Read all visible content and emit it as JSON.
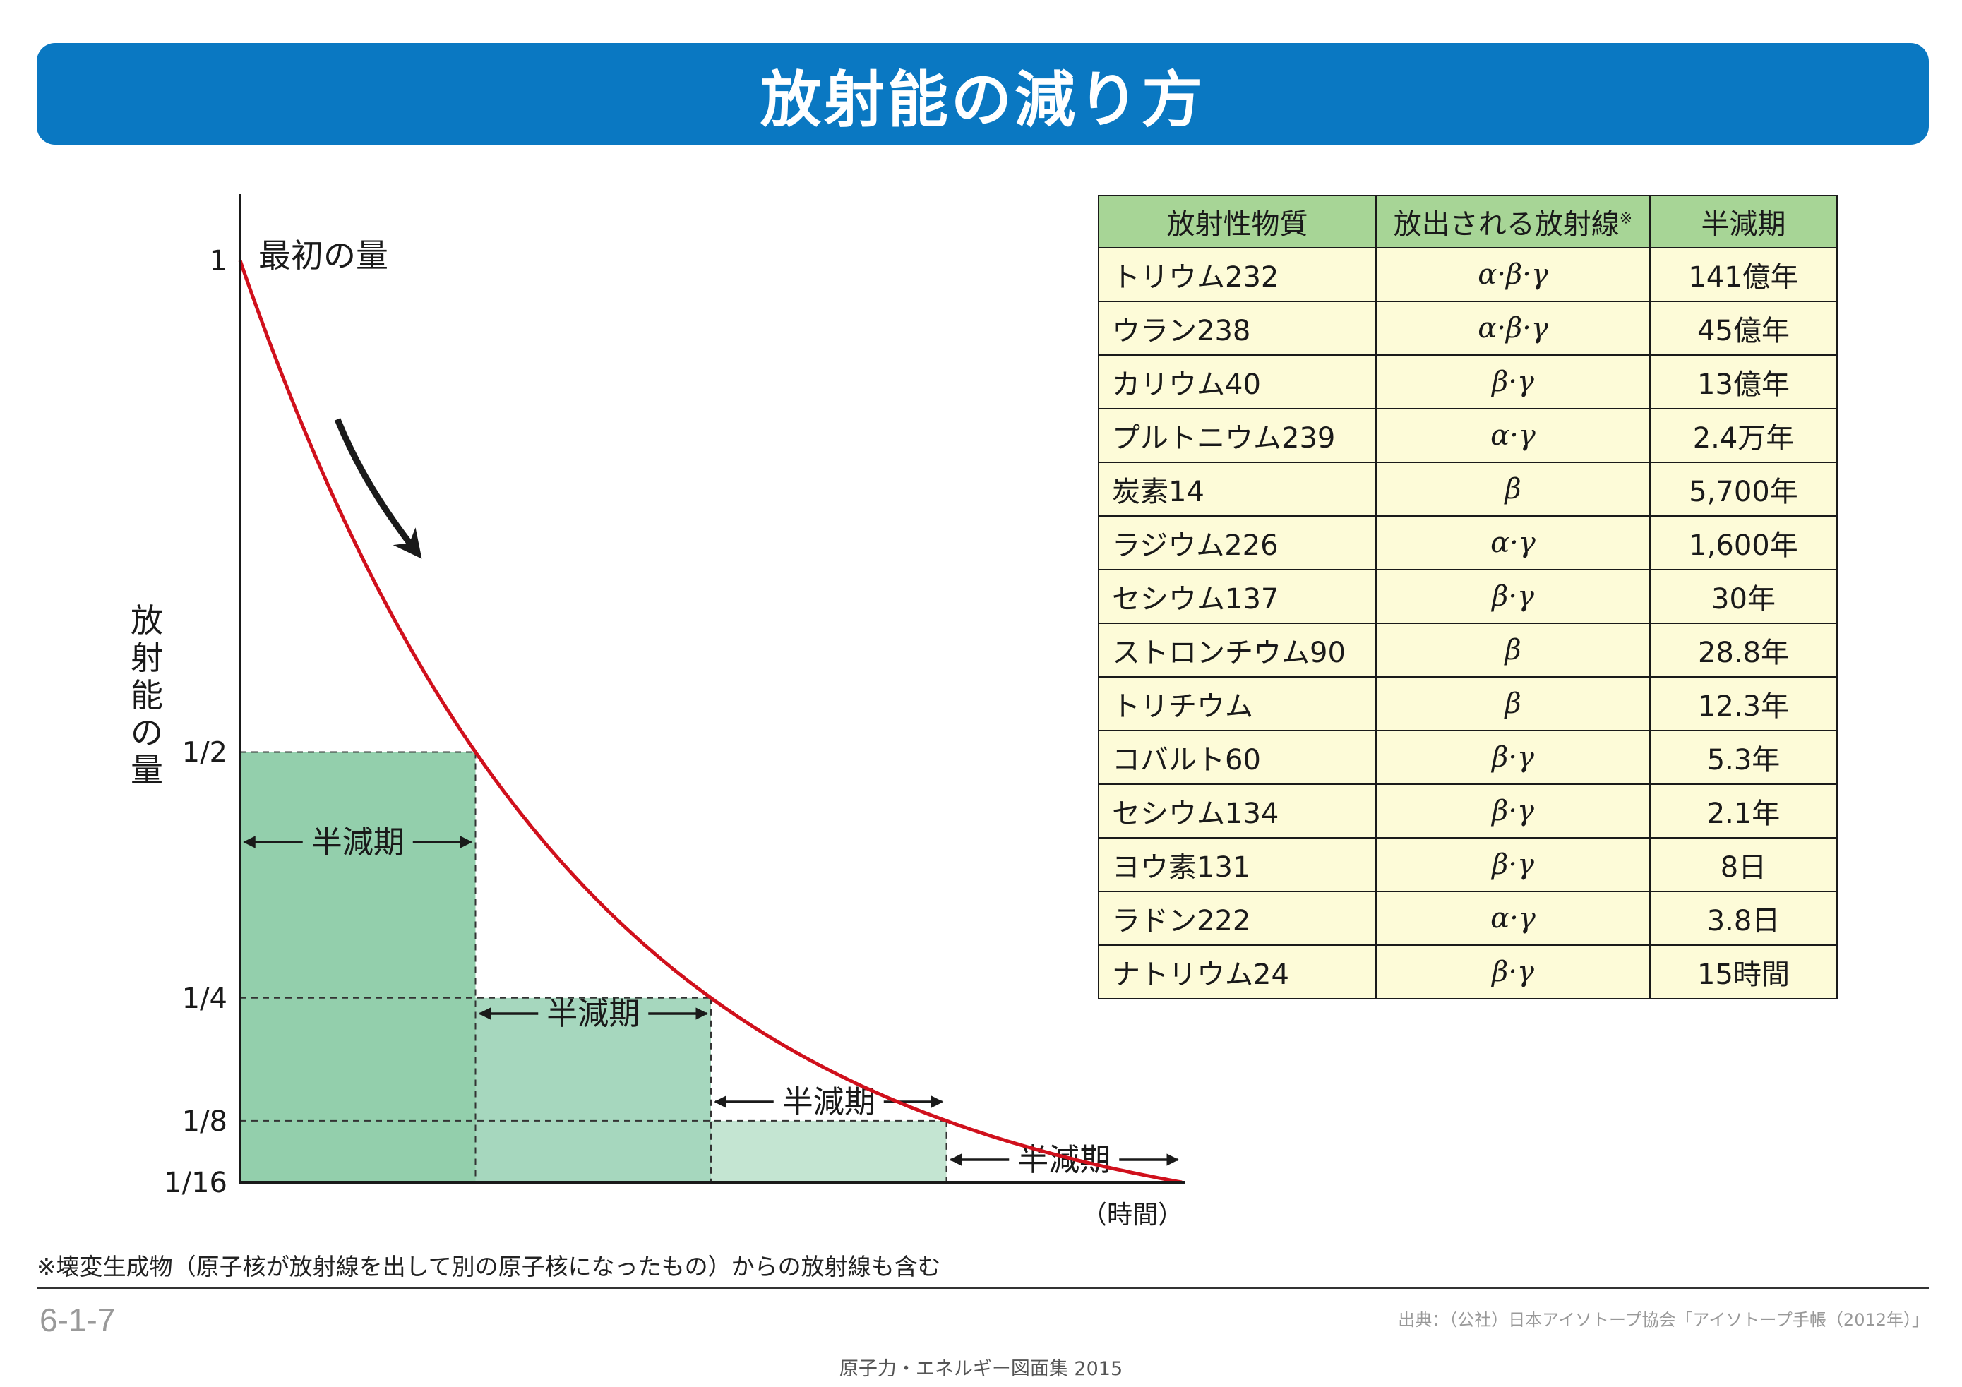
{
  "title": "放射能の減り方",
  "chart_data": {
    "type": "line",
    "ylabel": "放射能の量",
    "xlabel": "（時間）",
    "y_ticks": [
      "1",
      "1/2",
      "1/4",
      "1/8",
      "1/16"
    ],
    "y_tick_values": [
      1,
      0.5,
      0.25,
      0.125,
      0.0625
    ],
    "x": [
      0,
      1,
      2,
      3,
      4
    ],
    "x_unit": "half-lives",
    "values": [
      1,
      0.5,
      0.25,
      0.125,
      0.0625
    ],
    "start_annotation": "最初の量",
    "interval_label": "半減期",
    "curve_color": "#d0101c",
    "box_colors": [
      "#93cfac",
      "#a6d7be",
      "#c4e5d2",
      "#e9f5ef"
    ]
  },
  "table": {
    "headers": [
      "放射性物質",
      "放出される放射線",
      "半減期"
    ],
    "header_mark": "※",
    "header_color": "#a7d596",
    "cell_color": "#fdfbd8",
    "rows": [
      [
        "トリウム232",
        "α·β·γ",
        "141億年"
      ],
      [
        "ウラン238",
        "α·β·γ",
        "45億年"
      ],
      [
        "カリウム40",
        "β·γ",
        "13億年"
      ],
      [
        "プルトニウム239",
        "α·γ",
        "2.4万年"
      ],
      [
        "炭素14",
        "β",
        "5,700年"
      ],
      [
        "ラジウム226",
        "α·γ",
        "1,600年"
      ],
      [
        "セシウム137",
        "β·γ",
        "30年"
      ],
      [
        "ストロンチウム90",
        "β",
        "28.8年"
      ],
      [
        "トリチウム",
        "β",
        "12.3年"
      ],
      [
        "コバルト60",
        "β·γ",
        "5.3年"
      ],
      [
        "セシウム134",
        "β·γ",
        "2.1年"
      ],
      [
        "ヨウ素131",
        "β·γ",
        "8日"
      ],
      [
        "ラドン222",
        "α·γ",
        "3.8日"
      ],
      [
        "ナトリウム24",
        "β·γ",
        "15時間"
      ]
    ]
  },
  "note": "※壊変生成物（原子核が放射線を出して別の原子核になったもの）からの放射線も含む",
  "page_number": "6-1-7",
  "source": "出典：（公社）日本アイソトープ協会「アイソトープ手帳（2012年）」",
  "footer": "原子力・エネルギー図面集 2015"
}
